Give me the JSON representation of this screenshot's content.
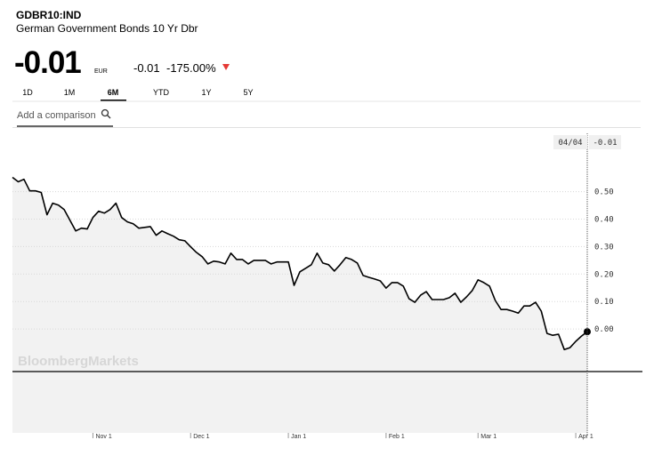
{
  "header": {
    "ticker": "GDBR10:IND",
    "name": "German Government Bonds 10 Yr Dbr",
    "price": "-0.01",
    "currency": "EUR",
    "change": "-0.01",
    "change_pct": "-175.00%"
  },
  "tabs": [
    "1D",
    "1M",
    "6M",
    "YTD",
    "1Y",
    "5Y"
  ],
  "comparison_placeholder": "Add a comparison",
  "tooltip": {
    "date": "04/04",
    "value": "-0.01"
  },
  "watermark": "BloombergMarkets",
  "chart_data": {
    "type": "line",
    "color": "#000000",
    "grid": true,
    "categories": [
      null,
      null,
      null,
      null,
      null,
      null,
      null,
      null,
      null,
      null,
      null,
      null,
      null,
      null,
      "Nov 1",
      null,
      null,
      null,
      null,
      null,
      null,
      null,
      null,
      null,
      null,
      null,
      null,
      null,
      null,
      null,
      null,
      "Dec 1",
      null,
      null,
      null,
      null,
      null,
      null,
      null,
      null,
      null,
      null,
      null,
      null,
      null,
      null,
      null,
      null,
      "Jan 1",
      null,
      null,
      null,
      null,
      null,
      null,
      null,
      null,
      null,
      null,
      null,
      null,
      null,
      null,
      null,
      null,
      "Feb 1",
      null,
      null,
      null,
      null,
      null,
      null,
      null,
      null,
      null,
      null,
      null,
      null,
      null,
      null,
      null,
      "Mar 1",
      null,
      null,
      null,
      null,
      null,
      null,
      null,
      null,
      null,
      null,
      null,
      null,
      null,
      null,
      null,
      null,
      "Apr 1",
      null,
      null
    ],
    "values": [
      0.552,
      0.536,
      0.545,
      0.503,
      0.503,
      0.497,
      0.416,
      0.458,
      0.451,
      0.435,
      0.396,
      0.357,
      0.367,
      0.364,
      0.406,
      0.429,
      0.422,
      0.435,
      0.458,
      0.406,
      0.39,
      0.383,
      0.367,
      0.37,
      0.373,
      0.341,
      0.357,
      0.347,
      0.338,
      0.325,
      0.321,
      0.299,
      0.279,
      0.263,
      0.237,
      0.247,
      0.244,
      0.237,
      0.276,
      0.253,
      0.253,
      0.237,
      0.25,
      0.25,
      0.25,
      0.237,
      0.244,
      0.244,
      0.244,
      0.159,
      0.208,
      0.221,
      0.234,
      0.276,
      0.24,
      0.234,
      0.211,
      0.234,
      0.26,
      0.253,
      0.24,
      0.195,
      0.188,
      0.182,
      0.175,
      0.149,
      0.169,
      0.169,
      0.156,
      0.11,
      0.097,
      0.123,
      0.136,
      0.107,
      0.107,
      0.107,
      0.114,
      0.13,
      0.097,
      0.117,
      0.14,
      0.179,
      0.169,
      0.156,
      0.104,
      0.071,
      0.071,
      0.065,
      0.058,
      0.084,
      0.084,
      0.097,
      0.065,
      -0.016,
      -0.023,
      -0.019,
      -0.075,
      -0.068,
      -0.045,
      -0.026,
      -0.01
    ],
    "ylim": [
      -0.155,
      0.735
    ],
    "yticks": [
      {
        "value": 0,
        "label": "0.00"
      },
      {
        "value": 0.1,
        "label": "0.10"
      },
      {
        "value": 0.2,
        "label": "0.20"
      },
      {
        "value": 0.3,
        "label": "0.30"
      },
      {
        "value": 0.4,
        "label": "0.40"
      },
      {
        "value": 0.5,
        "label": "0.50"
      }
    ]
  }
}
